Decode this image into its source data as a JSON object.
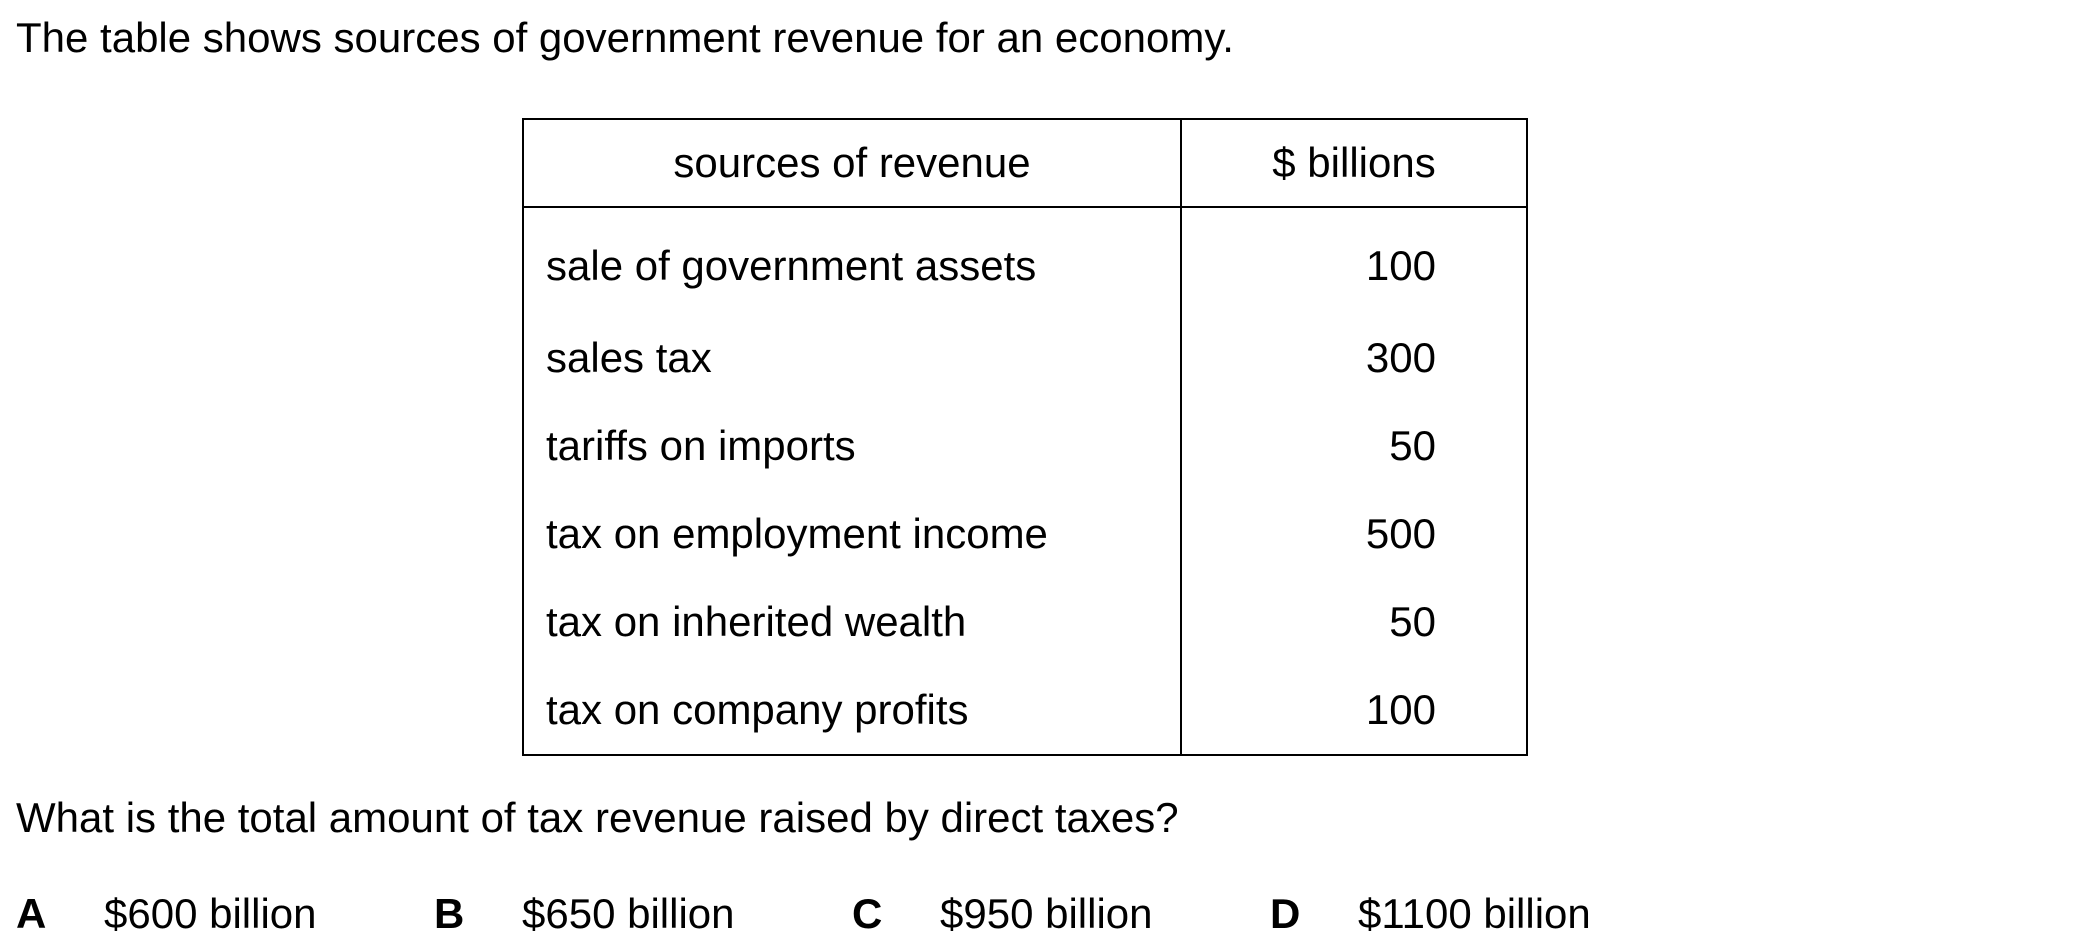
{
  "intro": "The table shows sources of government revenue for an economy.",
  "table": {
    "headers": [
      "sources of revenue",
      "$ billions"
    ],
    "rows": [
      {
        "source": "sale of government assets",
        "value": "100"
      },
      {
        "source": "sales tax",
        "value": "300"
      },
      {
        "source": "tariffs on imports",
        "value": "50"
      },
      {
        "source": "tax on employment income",
        "value": "500"
      },
      {
        "source": "tax on inherited wealth",
        "value": "50"
      },
      {
        "source": "tax on company profits",
        "value": "100"
      }
    ]
  },
  "question": "What is the total amount of tax revenue raised by direct taxes?",
  "options": [
    {
      "letter": "A",
      "text": "$600 billion"
    },
    {
      "letter": "B",
      "text": "$650 billion"
    },
    {
      "letter": "C",
      "text": "$950 billion"
    },
    {
      "letter": "D",
      "text": "$1100 billion"
    }
  ]
}
